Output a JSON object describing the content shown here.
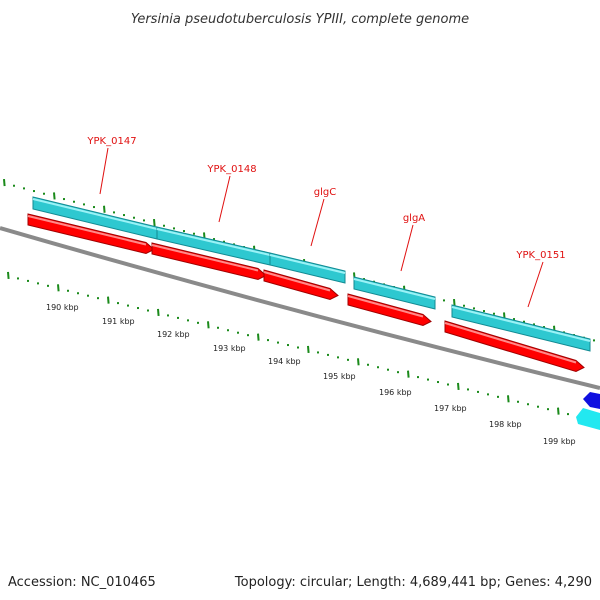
{
  "title": "Yersinia pseudotuberculosis YPIII, complete genome",
  "accession": "Accession: NC_010465",
  "topology": "Topology: circular; Length: 4,689,441 bp; Genes: 4,290",
  "colors": {
    "cds": "#ff0000",
    "gene": "#2ec8d0",
    "backbone": "#8a8a8a",
    "tick": "#1a8a1a",
    "label": "#e01010",
    "reverse_feature": "#1010e0"
  },
  "genes": [
    {
      "name": "YPK_0147"
    },
    {
      "name": "YPK_0148"
    },
    {
      "name": "glgC"
    },
    {
      "name": "glgA"
    },
    {
      "name": "YPK_0151"
    }
  ],
  "kbp_labels": [
    "190 kbp",
    "191 kbp",
    "192 kbp",
    "193 kbp",
    "194 kbp",
    "195 kbp",
    "196 kbp",
    "197 kbp",
    "198 kbp",
    "199 kbp"
  ]
}
